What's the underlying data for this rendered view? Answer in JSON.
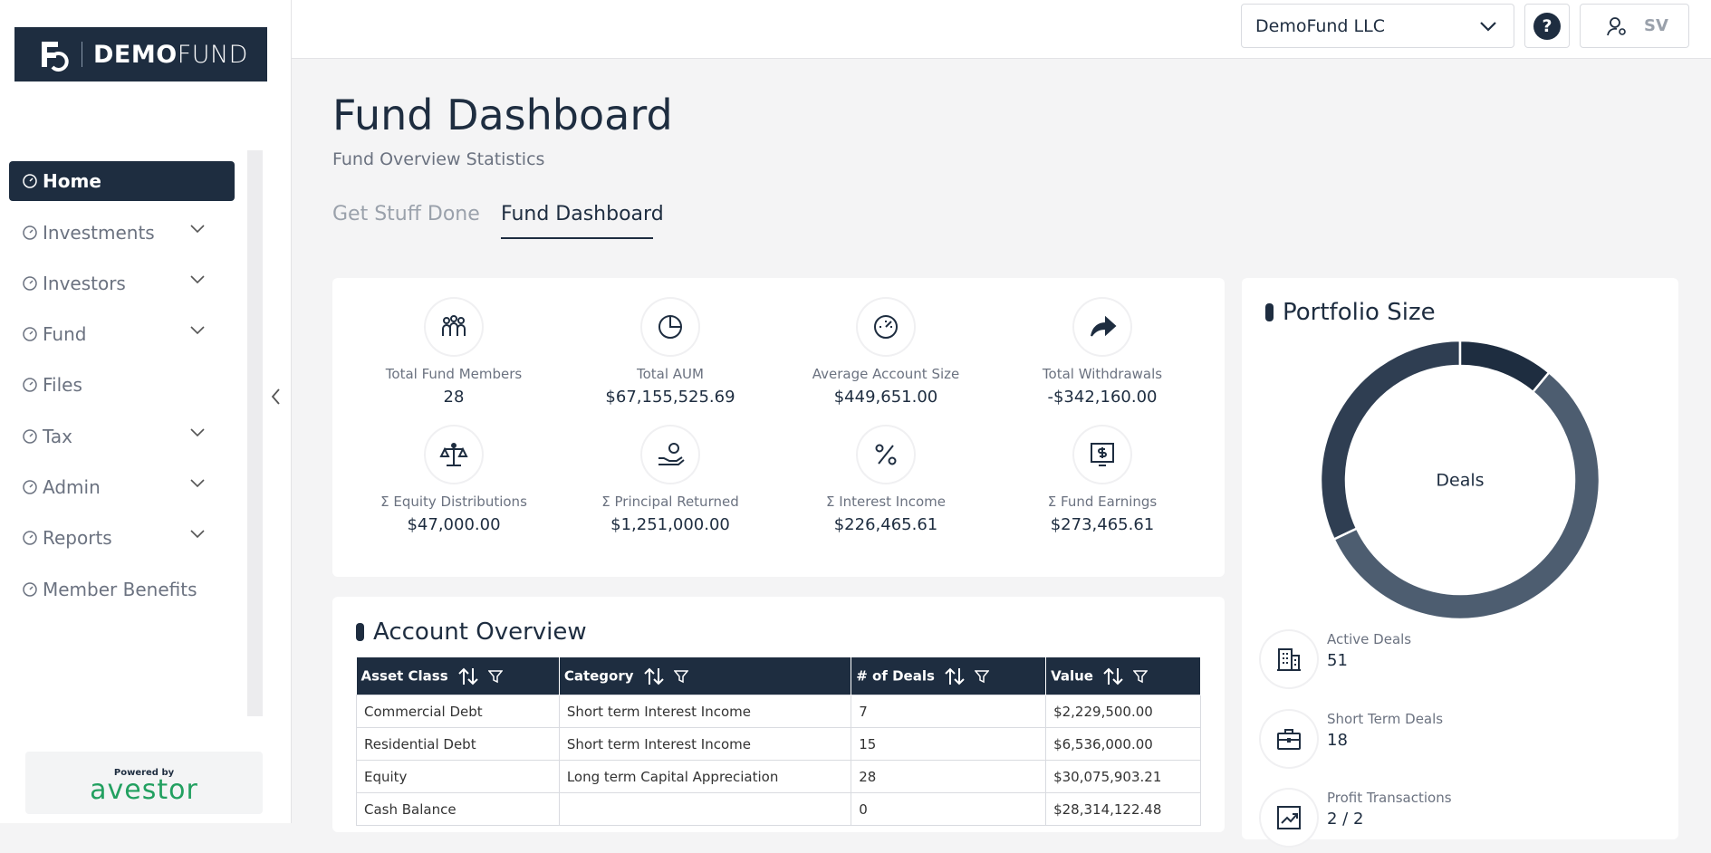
{
  "sidebar": {
    "logo_bold": "DEMO",
    "logo_light": "FUND",
    "nav": [
      "Home",
      "Investments",
      "Investors",
      "Fund",
      "Files",
      "Tax",
      "Admin",
      "Reports",
      "Member Benefits"
    ],
    "powered_by": "Powered by",
    "brand": "avestor"
  },
  "topbar": {
    "company": "DemoFund LLC",
    "help": "?",
    "user": "SV"
  },
  "page": {
    "title": "Fund Dashboard",
    "subtitle": "Fund Overview Statistics",
    "tabs": [
      "Get Stuff Done",
      "Fund Dashboard"
    ]
  },
  "stats": [
    {
      "label": "Total Fund Members",
      "value": "28"
    },
    {
      "label": "Total AUM",
      "value": "$67,155,525.69"
    },
    {
      "label": "Average Account Size",
      "value": "$449,651.00"
    },
    {
      "label": "Total Withdrawals",
      "value": "-$342,160.00"
    },
    {
      "label": "Σ Equity Distributions",
      "value": "$47,000.00"
    },
    {
      "label": "Σ Principal Returned",
      "value": "$1,251,000.00"
    },
    {
      "label": "Σ Interest Income",
      "value": "$226,465.61"
    },
    {
      "label": "Σ Fund Earnings",
      "value": "$273,465.61"
    }
  ],
  "table": {
    "title": "Account Overview",
    "columns": [
      "Asset Class",
      "Category",
      "# of Deals",
      "Value"
    ],
    "rows": [
      [
        "Commercial Debt",
        "Short term Interest Income",
        "7",
        "$2,229,500.00"
      ],
      [
        "Residential Debt",
        "Short term Interest Income",
        "15",
        "$6,536,000.00"
      ],
      [
        "Equity",
        "Long term Capital Appreciation",
        "28",
        "$30,075,903.21"
      ],
      [
        "Cash Balance",
        null,
        "0",
        "$28,314,122.48"
      ]
    ]
  },
  "chart_data": {
    "type": "pie",
    "title": "Portfolio Size",
    "center_label": "Deals",
    "values": [
      11,
      57,
      32
    ],
    "colors": [
      "#1e2d40",
      "#4d5d70",
      "#2f3e52"
    ]
  },
  "portfolio_stats": [
    {
      "label": "Active Deals",
      "value": "51"
    },
    {
      "label": "Short Term Deals",
      "value": "18"
    },
    {
      "label": "Profit Transactions",
      "value": "2 / 2"
    }
  ]
}
